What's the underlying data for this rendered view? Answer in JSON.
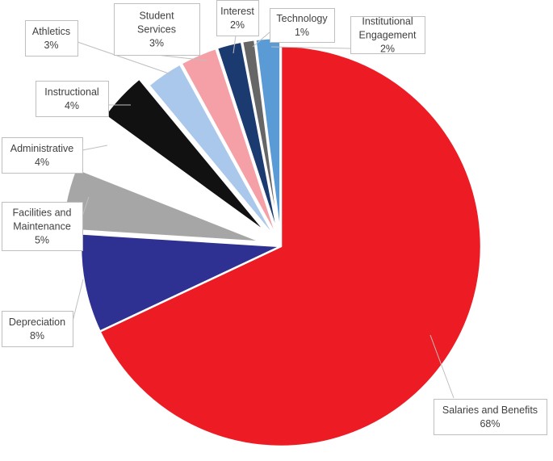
{
  "chart_data": {
    "type": "pie",
    "title": "",
    "legend": "none",
    "slices": [
      {
        "name": "Salaries and Benefits",
        "value": 68,
        "label": "68%",
        "color": "#ED1C24"
      },
      {
        "name": "Depreciation",
        "value": 8,
        "label": "8%",
        "color": "#2E3192"
      },
      {
        "name": "Facilities and Maintenance",
        "value": 5,
        "label": "5%",
        "color": "#A6A6A6"
      },
      {
        "name": "Administrative",
        "value": 4,
        "label": "4%",
        "color": "#FFFFFF"
      },
      {
        "name": "Instructional",
        "value": 4,
        "label": "4%",
        "color": "#111111"
      },
      {
        "name": "Athletics",
        "value": 3,
        "label": "3%",
        "color": "#A9C8EC"
      },
      {
        "name": "Student Services",
        "value": 3,
        "label": "3%",
        "color": "#F4A0A6"
      },
      {
        "name": "Interest",
        "value": 2,
        "label": "2%",
        "color": "#1A3A70"
      },
      {
        "name": "Technology",
        "value": 1,
        "label": "1%",
        "color": "#666666"
      },
      {
        "name": "Institutional Engagement",
        "value": 2,
        "label": "2%",
        "color": "#5B9BD5"
      }
    ]
  }
}
